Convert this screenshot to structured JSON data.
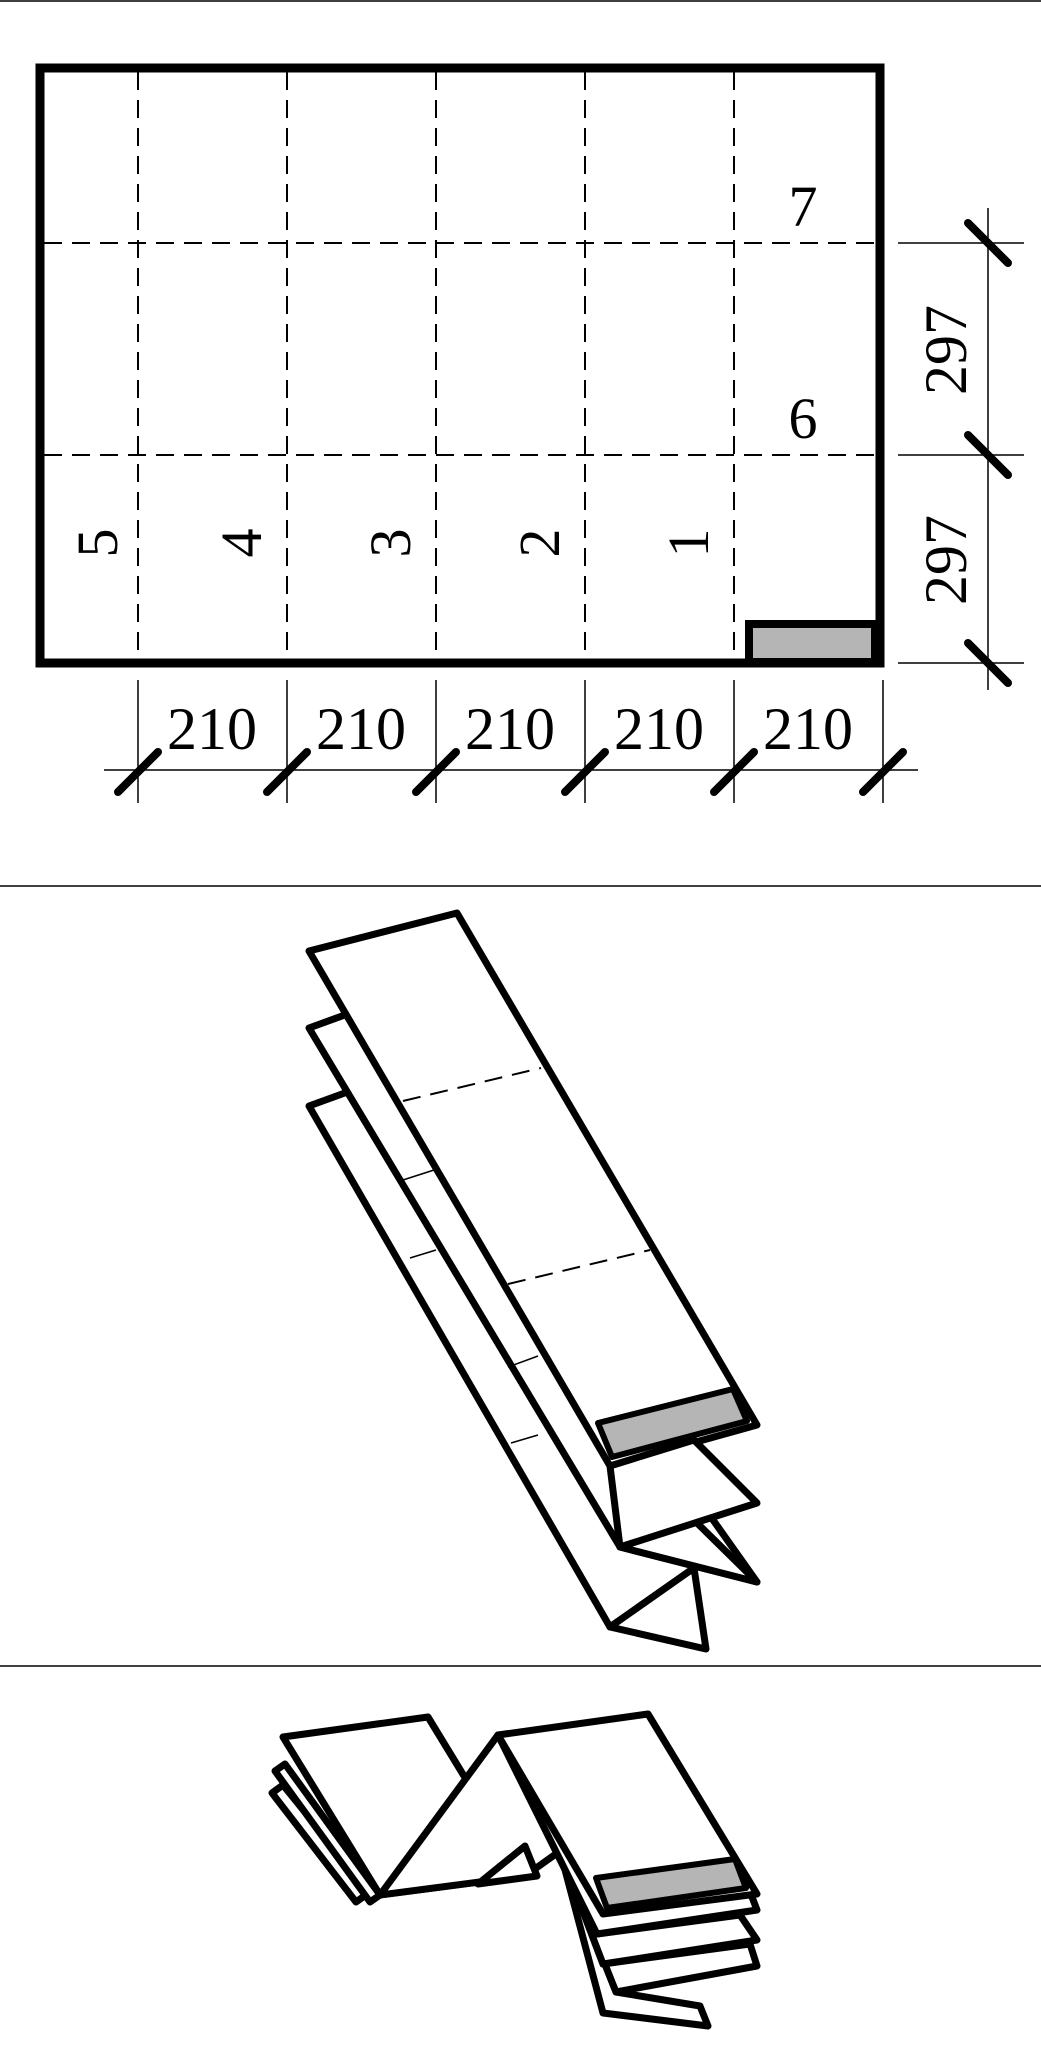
{
  "sheet": {
    "panel_numbers": [
      "1",
      "2",
      "3",
      "4",
      "5",
      "6",
      "7"
    ],
    "width_dimensions": [
      "210",
      "210",
      "210",
      "210",
      "210"
    ],
    "height_dimensions": [
      "297",
      "297"
    ],
    "tab_fill_color": "#b5b5b5"
  },
  "views": [
    "flat-layout",
    "zigzag-folded",
    "accordion-folded"
  ]
}
